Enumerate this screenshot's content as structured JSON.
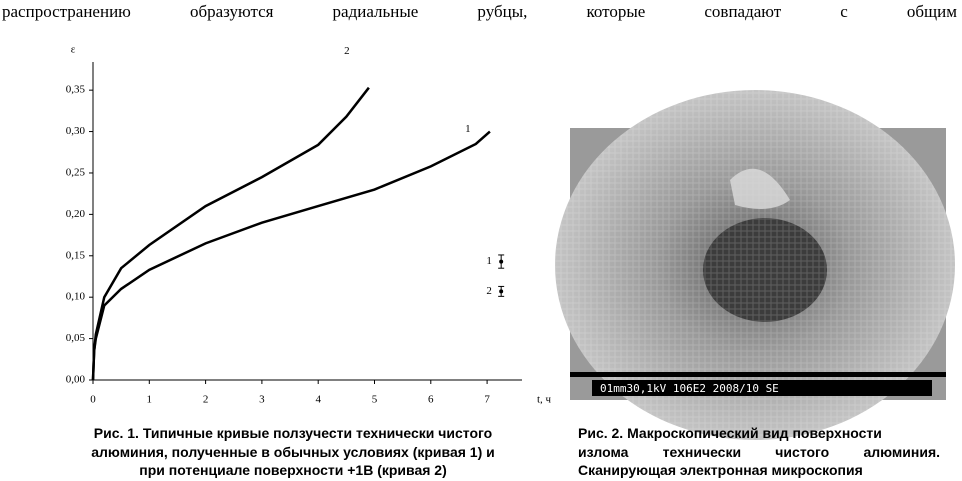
{
  "top_text": "распространению образуются радиальные рубцы, которые совпадают с общим",
  "chart_data": {
    "type": "line",
    "ylabel": "ε",
    "xlabel": "t, ч",
    "xlim": [
      0,
      7.62
    ],
    "ylim": [
      0,
      0.384
    ],
    "xticks": [
      0,
      1,
      2,
      3,
      4,
      5,
      6,
      7
    ],
    "yticks": [
      {
        "value": 0,
        "label": "0,00"
      },
      {
        "value": 0.05,
        "label": "0,05"
      },
      {
        "value": 0.1,
        "label": "0,10"
      },
      {
        "value": 0.15,
        "label": "0,15"
      },
      {
        "value": 0.2,
        "label": "0,20"
      },
      {
        "value": 0.25,
        "label": "0,25"
      },
      {
        "value": 0.3,
        "label": "0,30"
      },
      {
        "value": 0.35,
        "label": "0,35"
      }
    ],
    "series": [
      {
        "name": "1",
        "color": "#000000",
        "x": [
          0,
          0.02,
          0.05,
          0.2,
          0.5,
          1,
          2,
          3,
          4,
          5,
          6,
          6.8,
          7.05
        ],
        "values": [
          0,
          0.035,
          0.05,
          0.09,
          0.11,
          0.133,
          0.165,
          0.19,
          0.21,
          0.23,
          0.258,
          0.285,
          0.3
        ],
        "marker": {
          "x": 7.25,
          "y": 0.143,
          "error": 0.008
        }
      },
      {
        "name": "2",
        "color": "#000000",
        "x": [
          0,
          0.02,
          0.05,
          0.2,
          0.5,
          1,
          2,
          3,
          4,
          4.5,
          4.9
        ],
        "values": [
          0,
          0.035,
          0.055,
          0.1,
          0.135,
          0.163,
          0.21,
          0.245,
          0.284,
          0.318,
          0.353
        ],
        "marker": {
          "x": 7.25,
          "y": 0.107,
          "error": 0.006
        }
      }
    ],
    "caption": [
      "Рис. 1. Типичные кривые ползучести технически чистого",
      "алюминия, полученные в обычных условиях (кривая 1) и",
      "при потенциале поверхности +1В (кривая 2)"
    ]
  },
  "figure2": {
    "image_info": "01mm30,1kV 106E2 2008/10 SE",
    "caption": [
      "Рис. 2. Макроскопический вид поверхности",
      "излома технически чистого алюминия.",
      "Сканирующая электронная микроскопия"
    ]
  }
}
